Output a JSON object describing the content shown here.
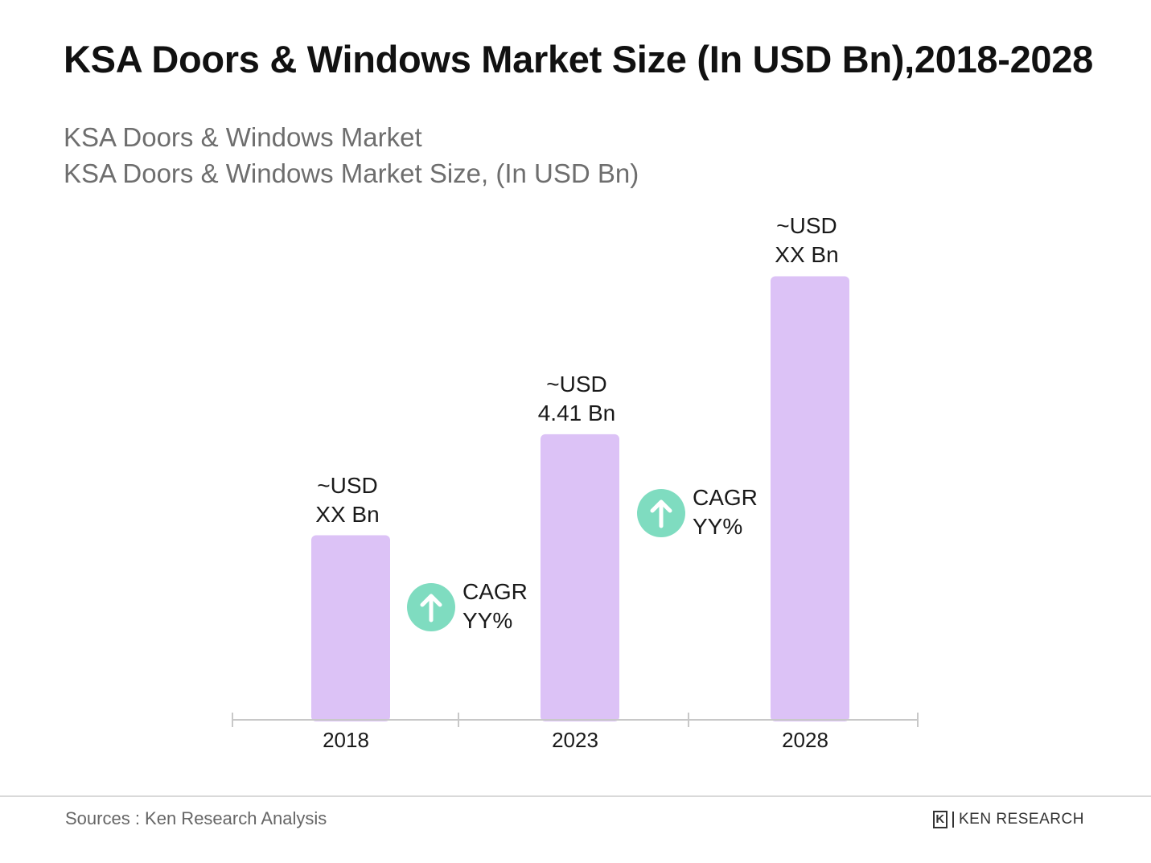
{
  "title": "KSA Doors & Windows Market Size (In USD Bn),2018-2028",
  "subtitle_lines": [
    "KSA Doors & Windows Market",
    "KSA Doors & Windows Market Size, (In USD Bn)"
  ],
  "chart_data": {
    "type": "bar",
    "categories": [
      "2018",
      "2023",
      "2028"
    ],
    "values": [
      2.85,
      4.41,
      6.85
    ],
    "bar_labels": [
      [
        "~USD",
        "XX Bn"
      ],
      [
        "~USD",
        "4.41 Bn"
      ],
      [
        "~USD",
        "XX Bn"
      ]
    ],
    "ylim": [
      0,
      7.7
    ],
    "grid": false,
    "annotations": [
      {
        "between": [
          "2018",
          "2023"
        ],
        "lines": [
          "CAGR",
          "YY%"
        ],
        "icon": "arrow-up-circle-icon"
      },
      {
        "between": [
          "2023",
          "2028"
        ],
        "lines": [
          "CAGR",
          "YY%"
        ],
        "icon": "arrow-up-circle-icon"
      }
    ]
  },
  "colors": {
    "bar": "#dcc2f6",
    "cagr_circle": "#7fdcc0",
    "axis": "#c8c8c8"
  },
  "footer": {
    "source": "Sources : Ken Research Analysis",
    "brand": "KEN RESEARCH",
    "brand_mark": "K"
  }
}
